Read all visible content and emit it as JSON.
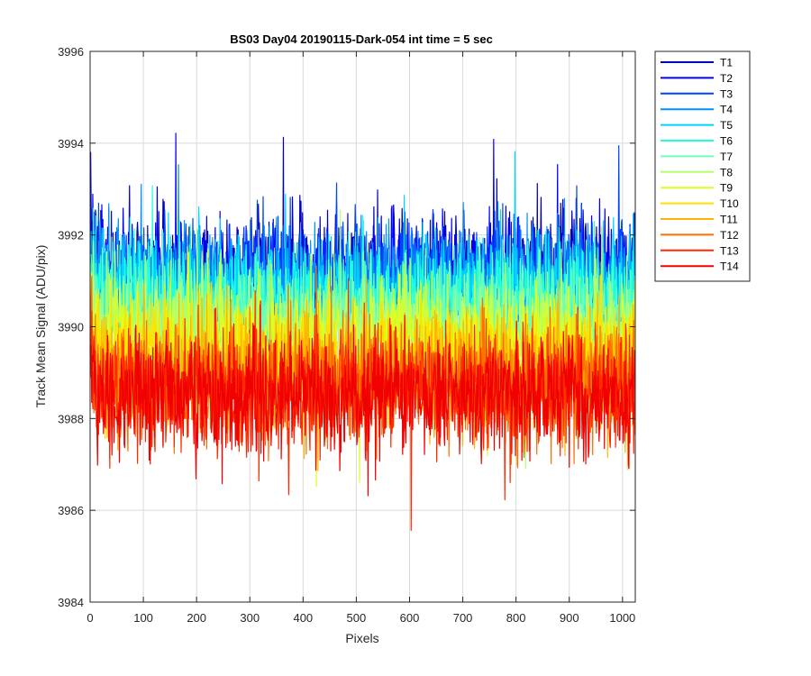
{
  "chart_data": {
    "type": "line",
    "title": "BS03 Day04 20190115-Dark-054 int time = 5 sec",
    "xlabel": "Pixels",
    "ylabel": "Track Mean Signal (ADU/pix)",
    "xlim": [
      0,
      1024
    ],
    "ylim": [
      3984,
      3996
    ],
    "xticks": [
      0,
      100,
      200,
      300,
      400,
      500,
      600,
      700,
      800,
      900,
      1000
    ],
    "yticks": [
      3984,
      3986,
      3988,
      3990,
      3992,
      3994,
      3996
    ],
    "grid": true,
    "legend_position": "outside-top-right",
    "n_pixels": 1024,
    "series": [
      {
        "name": "T1",
        "color": "#0000b8",
        "mean": 3991.2,
        "noise": 0.85
      },
      {
        "name": "T2",
        "color": "#0000ff",
        "mean": 3991.1,
        "noise": 0.85
      },
      {
        "name": "T3",
        "color": "#0046ff",
        "mean": 3991.0,
        "noise": 0.85
      },
      {
        "name": "T4",
        "color": "#0090ff",
        "mean": 3990.9,
        "noise": 0.85
      },
      {
        "name": "T5",
        "color": "#00d4ff",
        "mean": 3990.7,
        "noise": 0.85
      },
      {
        "name": "T6",
        "color": "#24ffdb",
        "mean": 3990.5,
        "noise": 0.85
      },
      {
        "name": "T7",
        "color": "#6dffb6",
        "mean": 3990.2,
        "noise": 0.85
      },
      {
        "name": "T8",
        "color": "#b6ff6d",
        "mean": 3989.9,
        "noise": 0.85
      },
      {
        "name": "T9",
        "color": "#dbff24",
        "mean": 3989.6,
        "noise": 0.85
      },
      {
        "name": "T10",
        "color": "#ffe100",
        "mean": 3989.3,
        "noise": 0.85
      },
      {
        "name": "T11",
        "color": "#ffb400",
        "mean": 3989.0,
        "noise": 0.85
      },
      {
        "name": "T12",
        "color": "#ff6f00",
        "mean": 3988.8,
        "noise": 0.85
      },
      {
        "name": "T13",
        "color": "#ff2a00",
        "mean": 3988.6,
        "noise": 0.85
      },
      {
        "name": "T14",
        "color": "#f00000",
        "mean": 3988.5,
        "noise": 0.85
      }
    ]
  }
}
